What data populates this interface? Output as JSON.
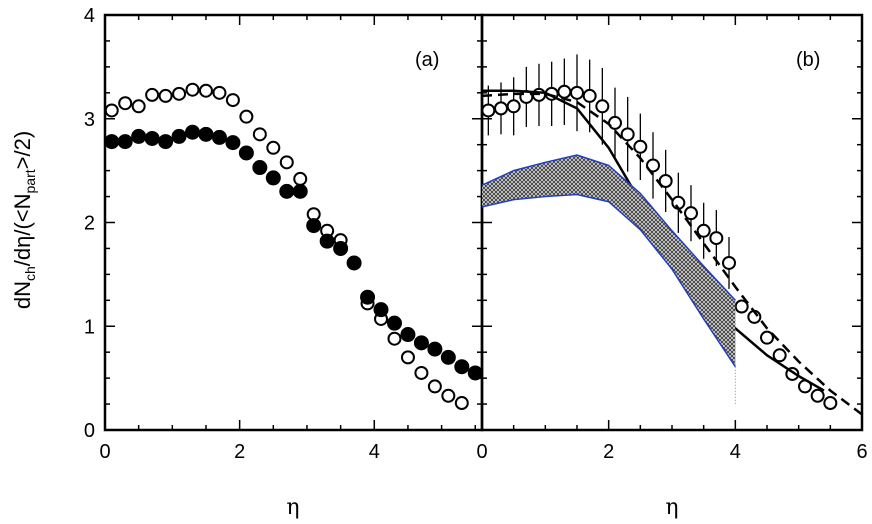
{
  "chart_data": [
    {
      "panel_label": "(a)",
      "type": "scatter",
      "xlabel": "η",
      "ylabel": {
        "main": "dN",
        "sub1": "ch",
        "mid": "/dη/(<N",
        "sub2": "part",
        "end": ">/2)"
      },
      "xlim": [
        0,
        5.6
      ],
      "ylim": [
        0,
        4
      ],
      "xticks": [
        "0",
        "2",
        "4"
      ],
      "yticks": [
        "0",
        "1",
        "2",
        "3",
        "4"
      ],
      "grid": false,
      "series": [
        {
          "style": "open-circle",
          "points": [
            [
              0.1,
              3.08
            ],
            [
              0.3,
              3.15
            ],
            [
              0.5,
              3.12
            ],
            [
              0.7,
              3.23
            ],
            [
              0.9,
              3.22
            ],
            [
              1.1,
              3.24
            ],
            [
              1.3,
              3.28
            ],
            [
              1.5,
              3.27
            ],
            [
              1.7,
              3.25
            ],
            [
              1.9,
              3.18
            ],
            [
              2.1,
              3.02
            ],
            [
              2.3,
              2.85
            ],
            [
              2.5,
              2.72
            ],
            [
              2.7,
              2.58
            ],
            [
              2.9,
              2.42
            ],
            [
              3.1,
              2.08
            ],
            [
              3.3,
              1.92
            ],
            [
              3.5,
              1.83
            ],
            [
              3.9,
              1.22
            ],
            [
              4.1,
              1.07
            ],
            [
              4.3,
              0.88
            ],
            [
              4.5,
              0.7
            ],
            [
              4.7,
              0.55
            ],
            [
              4.9,
              0.42
            ],
            [
              5.1,
              0.33
            ],
            [
              5.3,
              0.26
            ]
          ]
        },
        {
          "style": "filled-circle",
          "points": [
            [
              0.1,
              2.78
            ],
            [
              0.3,
              2.78
            ],
            [
              0.5,
              2.83
            ],
            [
              0.7,
              2.81
            ],
            [
              0.9,
              2.78
            ],
            [
              1.1,
              2.83
            ],
            [
              1.3,
              2.87
            ],
            [
              1.5,
              2.85
            ],
            [
              1.7,
              2.82
            ],
            [
              1.9,
              2.77
            ],
            [
              2.1,
              2.67
            ],
            [
              2.3,
              2.53
            ],
            [
              2.5,
              2.43
            ],
            [
              2.7,
              2.3
            ],
            [
              2.9,
              2.3
            ],
            [
              3.1,
              1.97
            ],
            [
              3.3,
              1.82
            ],
            [
              3.5,
              1.75
            ],
            [
              3.7,
              1.61
            ],
            [
              3.9,
              1.28
            ],
            [
              4.1,
              1.16
            ],
            [
              4.3,
              1.03
            ],
            [
              4.5,
              0.92
            ],
            [
              4.7,
              0.84
            ],
            [
              4.9,
              0.78
            ],
            [
              5.1,
              0.7
            ],
            [
              5.3,
              0.61
            ],
            [
              5.5,
              0.55
            ]
          ]
        }
      ]
    },
    {
      "panel_label": "(b)",
      "type": "line",
      "xlabel": "η",
      "xlim": [
        0,
        6
      ],
      "ylim": [
        0,
        4
      ],
      "xticks": [
        "0",
        "2",
        "4",
        "6"
      ],
      "grid": false,
      "series": [
        {
          "style": "open-circle-errorbar",
          "points": [
            [
              0.1,
              3.08,
              0.24
            ],
            [
              0.3,
              3.1,
              0.25
            ],
            [
              0.5,
              3.12,
              0.28
            ],
            [
              0.7,
              3.21,
              0.29
            ],
            [
              0.9,
              3.23,
              0.3
            ],
            [
              1.1,
              3.24,
              0.31
            ],
            [
              1.3,
              3.26,
              0.32
            ],
            [
              1.5,
              3.25,
              0.37
            ],
            [
              1.7,
              3.22,
              0.35
            ],
            [
              1.9,
              3.12,
              0.37
            ],
            [
              2.1,
              2.96,
              0.34
            ],
            [
              2.3,
              2.85,
              0.36
            ],
            [
              2.5,
              2.73,
              0.32
            ],
            [
              2.7,
              2.55,
              0.32
            ],
            [
              2.9,
              2.4,
              0.3
            ],
            [
              3.1,
              2.19,
              0.29
            ],
            [
              3.3,
              2.09,
              0.27
            ],
            [
              3.5,
              1.92,
              0.27
            ],
            [
              3.7,
              1.85,
              0.27
            ],
            [
              3.9,
              1.61,
              0.25
            ],
            [
              4.1,
              1.19,
              0
            ],
            [
              4.3,
              1.09,
              0
            ],
            [
              4.5,
              0.89,
              0
            ],
            [
              4.7,
              0.72,
              0
            ],
            [
              4.9,
              0.54,
              0
            ],
            [
              5.1,
              0.42,
              0
            ],
            [
              5.3,
              0.33,
              0
            ],
            [
              5.5,
              0.26,
              0
            ]
          ]
        },
        {
          "style": "solid-line",
          "points": [
            [
              0,
              3.27
            ],
            [
              0.5,
              3.27
            ],
            [
              1.0,
              3.25
            ],
            [
              1.5,
              3.1
            ],
            [
              2.0,
              2.72
            ],
            [
              2.5,
              2.2
            ],
            [
              3.0,
              1.7
            ],
            [
              3.5,
              1.3
            ],
            [
              4.0,
              0.98
            ],
            [
              4.5,
              0.72
            ],
            [
              5.0,
              0.52
            ],
            [
              5.4,
              0.38
            ]
          ]
        },
        {
          "style": "dashed-line",
          "points": [
            [
              0,
              3.22
            ],
            [
              0.5,
              3.24
            ],
            [
              1.0,
              3.24
            ],
            [
              1.5,
              3.16
            ],
            [
              2.0,
              2.95
            ],
            [
              2.5,
              2.62
            ],
            [
              3.0,
              2.22
            ],
            [
              3.5,
              1.8
            ],
            [
              4.0,
              1.38
            ],
            [
              4.5,
              0.98
            ],
            [
              5.0,
              0.66
            ],
            [
              5.5,
              0.38
            ],
            [
              6.0,
              0.15
            ]
          ]
        },
        {
          "style": "hatched-band",
          "upper": [
            [
              0,
              2.36
            ],
            [
              0.5,
              2.5
            ],
            [
              1.0,
              2.58
            ],
            [
              1.5,
              2.65
            ],
            [
              2.0,
              2.55
            ],
            [
              2.5,
              2.28
            ],
            [
              3.0,
              1.92
            ],
            [
              3.5,
              1.58
            ],
            [
              4.0,
              1.25
            ]
          ],
          "lower": [
            [
              0,
              2.15
            ],
            [
              0.5,
              2.22
            ],
            [
              1.0,
              2.25
            ],
            [
              1.5,
              2.27
            ],
            [
              2.0,
              2.2
            ],
            [
              2.5,
              1.93
            ],
            [
              3.0,
              1.55
            ],
            [
              3.5,
              1.07
            ],
            [
              4.0,
              0.61
            ]
          ],
          "edge_color": "#1f3fbf",
          "fill_color": "#888888"
        }
      ]
    }
  ]
}
